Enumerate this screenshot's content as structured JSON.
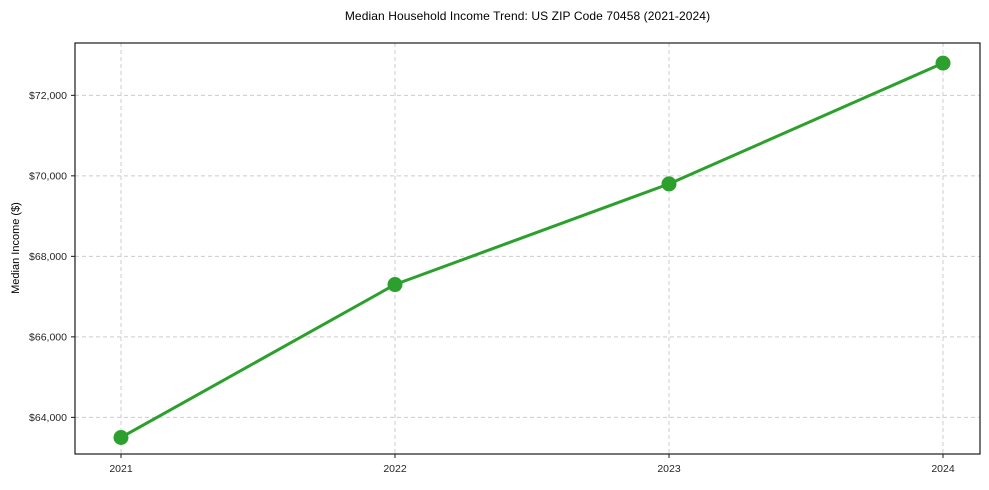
{
  "chart": {
    "title": "Median Household Income Trend: US ZIP Code 70458 (2021-2024)",
    "ylabel": "Median Income ($)"
  },
  "chart_data": {
    "type": "line",
    "title": "Median Household Income Trend: US ZIP Code 70458 (2021-2024)",
    "xlabel": "",
    "ylabel": "Median Income ($)",
    "categories": [
      "2021",
      "2022",
      "2023",
      "2024"
    ],
    "series": [
      {
        "name": "Median Income",
        "values": [
          63500,
          67300,
          69800,
          72800
        ]
      }
    ],
    "yticks": [
      64000,
      66000,
      68000,
      70000,
      72000
    ],
    "ytick_labels": [
      "$64,000",
      "$66,000",
      "$68,000",
      "$70,000",
      "$72,000"
    ],
    "ylim": [
      63090,
      73300
    ],
    "grid": true,
    "grid_style": "dashed",
    "legend_position": "none",
    "line_color": "#2ca02c",
    "marker_color": "#2ca02c",
    "grid_color": "#cccccc",
    "spine_color": "#1a1a1a",
    "background_color": "#ffffff"
  }
}
